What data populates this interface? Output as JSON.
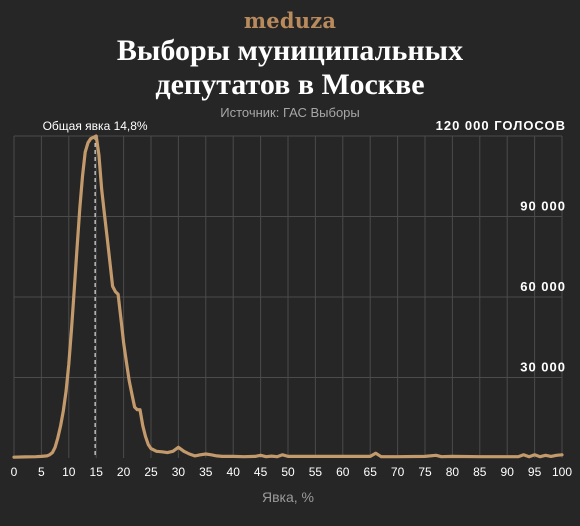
{
  "header": {
    "logo": "meduza",
    "title_line1": "Выборы муниципальных",
    "title_line2": "депутатов в Москве",
    "source": "Источник: ГАС Выборы"
  },
  "colors": {
    "background": "#262626",
    "series": "#c39a6b",
    "logo": "#b88a5c",
    "grid": "#4b4b4b"
  },
  "chart_data": {
    "type": "line",
    "title": "Выборы муниципальных депутатов в Москве",
    "subtitle": "Источник: ГАС Выборы",
    "xlabel": "Явка, %",
    "ylabel": "",
    "xlim": [
      0,
      100
    ],
    "ylim": [
      0,
      120000
    ],
    "grid": true,
    "x_ticks": [
      0,
      5,
      10,
      15,
      20,
      25,
      30,
      35,
      40,
      45,
      50,
      55,
      60,
      65,
      70,
      75,
      80,
      85,
      90,
      95,
      100
    ],
    "y_ticks": [
      {
        "value": 30000,
        "label": "30 000"
      },
      {
        "value": 60000,
        "label": "60 000"
      },
      {
        "value": 90000,
        "label": "90 000"
      },
      {
        "value": 120000,
        "label": "120 000 ГОЛОСОВ"
      }
    ],
    "annotation": {
      "x": 14.8,
      "label": "Общая явка 14,8%"
    },
    "series": [
      {
        "values_x": [
          0,
          2,
          4,
          5,
          6,
          6.5,
          7,
          7.5,
          8,
          8.5,
          9,
          9.5,
          10,
          10.5,
          11,
          11.5,
          12,
          12.5,
          13,
          13.5,
          14,
          14.5,
          15,
          15.5,
          16,
          16.5,
          17,
          17.5,
          18,
          18.5,
          19,
          19.5,
          20,
          20.5,
          21,
          21.5,
          22,
          22.5,
          23,
          23.5,
          24,
          24.5,
          25,
          26,
          27,
          28,
          29,
          30,
          31,
          32,
          33,
          34,
          35,
          36,
          37,
          38,
          40,
          42,
          44,
          45,
          46,
          47,
          48,
          49,
          50,
          55,
          60,
          65,
          66,
          67,
          70,
          75,
          77,
          78,
          80,
          85,
          90,
          92,
          93,
          94,
          95,
          96,
          97,
          98,
          99,
          100
        ],
        "values_y": [
          300,
          400,
          500,
          600,
          800,
          1200,
          2000,
          4000,
          7500,
          12000,
          17500,
          25000,
          35000,
          48000,
          63000,
          78000,
          93000,
          105000,
          114000,
          117500,
          119000,
          119500,
          120000,
          113000,
          100000,
          91000,
          82000,
          73000,
          64000,
          62000,
          61000,
          52000,
          43000,
          36000,
          29000,
          24000,
          19000,
          18000,
          18000,
          12000,
          8000,
          5000,
          3500,
          2500,
          2300,
          2000,
          2500,
          4000,
          2500,
          1500,
          800,
          1200,
          1500,
          1200,
          800,
          600,
          600,
          500,
          600,
          1000,
          500,
          700,
          500,
          1200,
          600,
          600,
          600,
          600,
          1800,
          500,
          500,
          600,
          1000,
          500,
          600,
          500,
          500,
          500,
          1200,
          500,
          1200,
          500,
          1000,
          600,
          1000,
          1200
        ]
      }
    ]
  }
}
